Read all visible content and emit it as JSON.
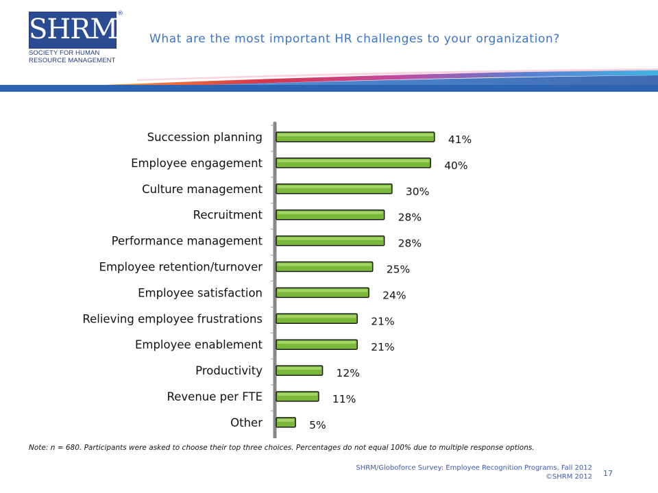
{
  "header": {
    "logo_text": "SHRM",
    "logo_registered": "®",
    "logo_subtitle_line1": "SOCIETY FOR HUMAN",
    "logo_subtitle_line2": "RESOURCE MANAGEMENT",
    "title": "What are the most important HR challenges to your organization?"
  },
  "colors": {
    "title": "#3b74c8",
    "bar_fill": "#7ab83a",
    "bar_stroke": "#1a1a1a",
    "logo": "#2b4b93"
  },
  "chart_data": {
    "type": "bar",
    "orientation": "horizontal",
    "categories": [
      "Succession planning",
      "Employee engagement",
      "Culture management",
      "Recruitment",
      "Performance management",
      "Employee retention/turnover",
      "Employee satisfaction",
      "Relieving employee frustrations",
      "Employee enablement",
      "Productivity",
      "Revenue per FTE",
      "Other"
    ],
    "values": [
      41,
      40,
      30,
      28,
      28,
      25,
      24,
      21,
      21,
      12,
      11,
      5
    ],
    "value_labels": [
      "41%",
      "40%",
      "30%",
      "28%",
      "28%",
      "25%",
      "24%",
      "21%",
      "21%",
      "12%",
      "11%",
      "5%"
    ],
    "unit": "%",
    "xlim": [
      0,
      100
    ],
    "grid": false,
    "legend": "none"
  },
  "footer": {
    "note": "Note: n = 680. Participants were asked to choose their top three choices. Percentages do not equal 100% due to multiple response options.",
    "source": "SHRM/Globoforce Survey: Employee Recognition Programs, Fall 2012",
    "copyright": "©SHRM 2012",
    "page_number": "17"
  }
}
